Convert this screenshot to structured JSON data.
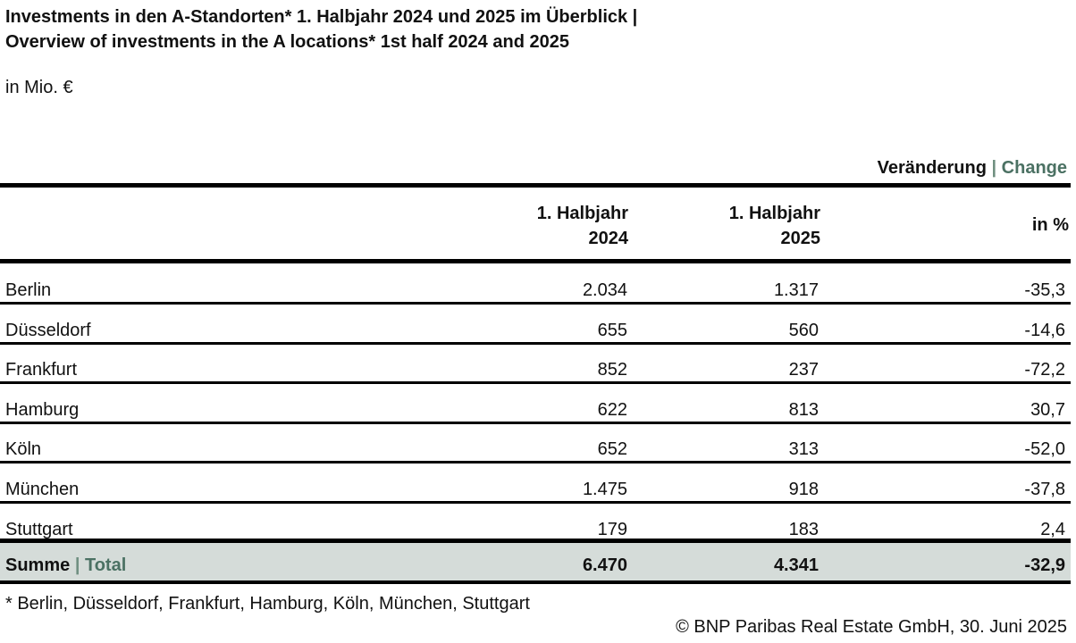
{
  "header": {
    "title_line1": "Investments in den A-Standorten* 1. Halbjahr 2024 und 2025 im Überblick |",
    "title_line2": "Overview of investments in the A locations* 1st half 2024 and 2025",
    "unit": "in Mio. €"
  },
  "change_header": {
    "de": "Veränderung",
    "separator": "|",
    "en": "Change"
  },
  "columns": {
    "col1_line1": "1. Halbjahr",
    "col1_line2": "2024",
    "col2_line1": "1. Halbjahr",
    "col2_line2": "2025",
    "col3": "in %"
  },
  "chart_data": {
    "type": "table",
    "title": "Overview of investments in the A locations* 1st half 2024 and 2025",
    "unit": "in Mio. €",
    "headers": [
      "",
      "1. Halbjahr 2024",
      "1. Halbjahr 2025",
      "Veränderung | Change in %"
    ],
    "rows": [
      {
        "name": "Berlin",
        "h1_2024": "2.034",
        "h1_2025": "1.317",
        "change_pct": "-35,3"
      },
      {
        "name": "Düsseldorf",
        "h1_2024": "655",
        "h1_2025": "560",
        "change_pct": "-14,6"
      },
      {
        "name": "Frankfurt",
        "h1_2024": "852",
        "h1_2025": "237",
        "change_pct": "-72,2"
      },
      {
        "name": "Hamburg",
        "h1_2024": "622",
        "h1_2025": "813",
        "change_pct": "30,7"
      },
      {
        "name": "Köln",
        "h1_2024": "652",
        "h1_2025": "313",
        "change_pct": "-52,0"
      },
      {
        "name": "München",
        "h1_2024": "1.475",
        "h1_2025": "918",
        "change_pct": "-37,8"
      },
      {
        "name": "Stuttgart",
        "h1_2024": "179",
        "h1_2025": "183",
        "change_pct": "2,4"
      }
    ],
    "total": {
      "label_de": "Summe",
      "separator": "|",
      "label_en": "Total",
      "h1_2024": "6.470",
      "h1_2025": "4.341",
      "change_pct": "-32,9"
    }
  },
  "footer": {
    "footnote": "* Berlin, Düsseldorf, Frankfurt, Hamburg, Köln, München, Stuttgart",
    "copyright": "© BNP Paribas Real Estate GmbH, 30. Juni 2025"
  },
  "colors": {
    "total_background": "#d5dcd9",
    "accent_green": "#4b7163",
    "rule": "#000000"
  }
}
